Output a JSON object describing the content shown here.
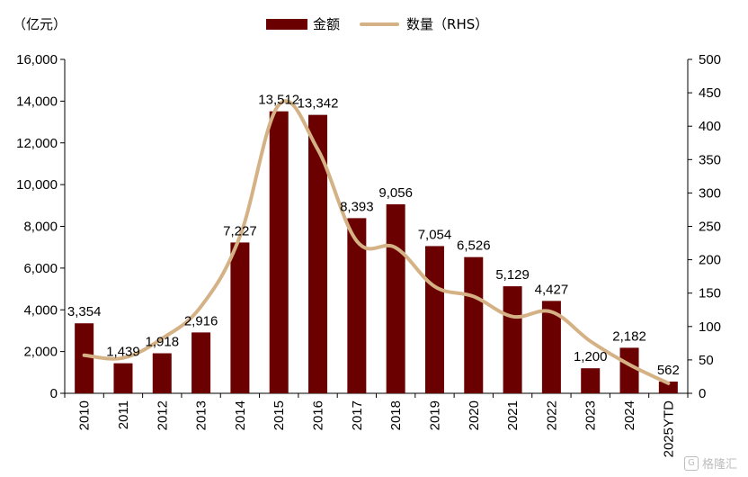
{
  "colors": {
    "bar": "#6b0000",
    "line": "#d4b286",
    "axis": "#000000"
  },
  "chart_data": {
    "type": "bar",
    "unit_label": "（亿元）",
    "categories": [
      "2010",
      "2011",
      "2012",
      "2013",
      "2014",
      "2015",
      "2016",
      "2017",
      "2018",
      "2019",
      "2020",
      "2021",
      "2022",
      "2023",
      "2024",
      "2025YTD"
    ],
    "series": [
      {
        "name": "金额",
        "type": "bar",
        "axis": "left",
        "values": [
          3354,
          1439,
          1918,
          2916,
          7227,
          13512,
          13342,
          8393,
          9056,
          7054,
          6526,
          5129,
          4427,
          1200,
          2182,
          562
        ],
        "labels": [
          "3,354",
          "1,439",
          "1,918",
          "2,916",
          "7,227",
          "13,512",
          "13,342",
          "8,393",
          "9,056",
          "7,054",
          "6,526",
          "5,129",
          "4,427",
          "1,200",
          "2,182",
          "562"
        ]
      },
      {
        "name": "数量（RHS）",
        "type": "line",
        "axis": "right",
        "values": [
          57,
          53,
          82,
          130,
          235,
          432,
          365,
          228,
          218,
          160,
          145,
          115,
          122,
          78,
          43,
          15
        ]
      }
    ],
    "y_left": {
      "min": 0,
      "max": 16000,
      "ticks": [
        "0",
        "2,000",
        "4,000",
        "6,000",
        "8,000",
        "10,000",
        "12,000",
        "14,000",
        "16,000"
      ]
    },
    "y_right": {
      "min": 0,
      "max": 500,
      "ticks": [
        "0",
        "50",
        "100",
        "150",
        "200",
        "250",
        "300",
        "350",
        "400",
        "450",
        "500"
      ]
    },
    "legend_position": "top-center",
    "grid": false
  },
  "watermark": "格隆汇",
  "watermark_logo": "G"
}
